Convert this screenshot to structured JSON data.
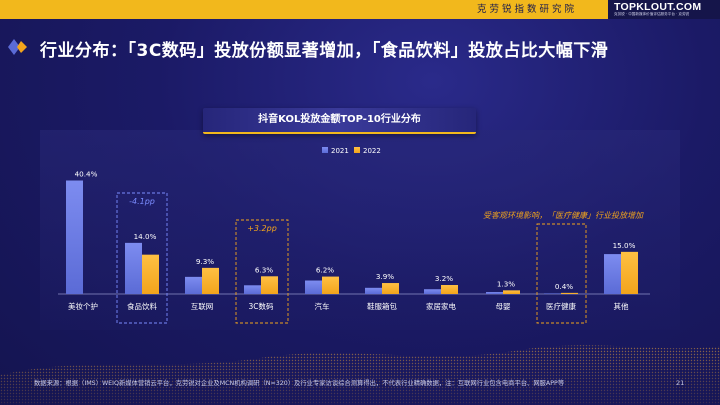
{
  "header": {
    "institute": "克劳锐指数研究院",
    "brand": "TOPKLOUT.COM",
    "brand_sub": "克劳锐 · 中国新媒体价值评估服务平台 · 克劳锐"
  },
  "page_title": "行业分布：「3C数码」投放份额显著增加，「食品饮料」投放占比大幅下滑",
  "colors": {
    "series_2021": "#5b6bd6",
    "series_2022": "#f2a41c",
    "accent": "#f2b81c",
    "highlight_blue": "#7b8cff",
    "highlight_orange": "#f2a41c"
  },
  "chart_data": {
    "type": "bar",
    "title": "抖音KOL投放金额TOP-10行业分布",
    "legend": [
      "2021",
      "2022"
    ],
    "legend_position": "top-center",
    "categories": [
      "美妆个护",
      "食品饮料",
      "互联网",
      "3C数码",
      "汽车",
      "鞋服箱包",
      "家居家电",
      "母婴",
      "医疗健康",
      "其他"
    ],
    "series": [
      {
        "name": "2021",
        "values": [
          40.4,
          18.2,
          6.1,
          3.1,
          4.8,
          2.2,
          1.7,
          0.7,
          0.2,
          14.2
        ]
      },
      {
        "name": "2022",
        "values": [
          null,
          14.0,
          9.3,
          6.3,
          6.2,
          3.9,
          3.2,
          1.3,
          0.4,
          15.0
        ]
      }
    ],
    "data_labels": [
      "40.4%",
      "14.0%",
      "9.3%",
      "6.3%",
      "6.2%",
      "3.9%",
      "3.2%",
      "1.3%",
      "0.4%",
      "15.0%"
    ],
    "ylim": [
      0,
      42
    ],
    "grid": false,
    "annotations": {
      "food_change": "-4.1pp",
      "digital_change": "+3.2pp",
      "medical_note": "受客观环境影响，「医疗健康」行业投放增加"
    }
  },
  "footnote": "数据来源：根据（IMS）WEIQ新媒体营销云平台，克劳锐对企业及MCN机构调研（N=320）及行业专家访谈综合测算得出，不代表行业精确数据，注：互联网行业包含电商平台、网服APP等",
  "page_number": "21"
}
